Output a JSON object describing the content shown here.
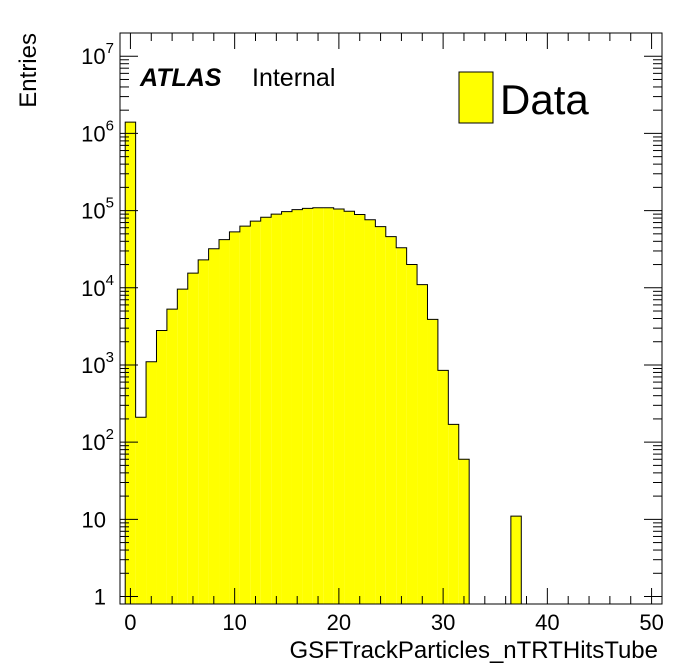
{
  "chart_data": {
    "type": "bar",
    "title": "",
    "xlabel": "GSFTrackParticles_nTRTHitsTube",
    "ylabel": "Entries",
    "xlim": [
      -1,
      51
    ],
    "ylim": [
      0.8,
      20000000
    ],
    "yscale": "log",
    "grid": false,
    "legend_position": "top-right",
    "bin_width": 1,
    "x": [
      0,
      1,
      2,
      3,
      4,
      5,
      6,
      7,
      8,
      9,
      10,
      11,
      12,
      13,
      14,
      15,
      16,
      17,
      18,
      19,
      20,
      21,
      22,
      23,
      24,
      25,
      26,
      27,
      28,
      29,
      30,
      31,
      32,
      33,
      34,
      35,
      36,
      37,
      38,
      39,
      40,
      41,
      42,
      43,
      44,
      45,
      46,
      47,
      48,
      49,
      50
    ],
    "series": [
      {
        "name": "Data",
        "color": "#ffff00",
        "values": [
          1400000,
          210,
          1100,
          2800,
          5300,
          9600,
          15500,
          23000,
          32000,
          42000,
          53000,
          63000,
          73000,
          82000,
          90000,
          97000,
          103000,
          107000,
          109000,
          109000,
          105000,
          98000,
          89000,
          76000,
          62000,
          46000,
          33000,
          20000,
          11000,
          3900,
          850,
          170,
          60,
          0,
          0,
          0,
          0,
          11,
          0,
          0,
          0,
          0,
          0,
          0,
          0,
          0,
          0,
          0,
          0,
          0,
          0
        ]
      }
    ],
    "x_ticks": [
      0,
      10,
      20,
      30,
      40,
      50
    ],
    "y_ticks": [
      {
        "value": 1,
        "base": "1",
        "exp": ""
      },
      {
        "value": 10,
        "base": "10",
        "exp": ""
      },
      {
        "value": 100,
        "base": "10",
        "exp": "2"
      },
      {
        "value": 1000,
        "base": "10",
        "exp": "3"
      },
      {
        "value": 10000,
        "base": "10",
        "exp": "4"
      },
      {
        "value": 100000,
        "base": "10",
        "exp": "5"
      },
      {
        "value": 1000000,
        "base": "10",
        "exp": "6"
      },
      {
        "value": 10000000,
        "base": "10",
        "exp": "7"
      }
    ],
    "annotations": {
      "experiment": "ATLAS",
      "status": "Internal"
    },
    "legend": [
      {
        "label": "Data",
        "color": "#ffff00"
      }
    ]
  }
}
